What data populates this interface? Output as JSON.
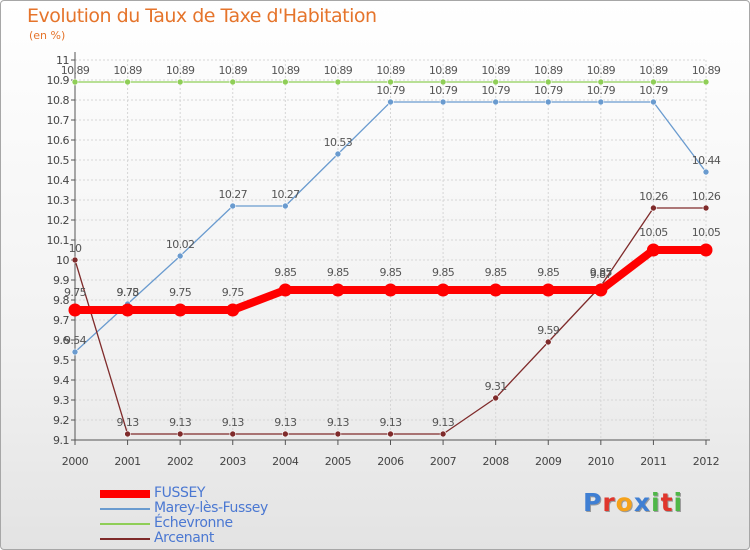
{
  "title": "Evolution du Taux de Taxe d'Habitation",
  "unit_label": "(en %)",
  "logo_text": "Proxiti",
  "logo_colors": [
    "#3f7fd3",
    "#e0362c",
    "#f5a21b",
    "#3f7fd3",
    "#4fb748",
    "#e0362c",
    "#4fb748"
  ],
  "chart_data": {
    "type": "line",
    "x": [
      2000,
      2001,
      2002,
      2003,
      2004,
      2005,
      2006,
      2007,
      2008,
      2009,
      2010,
      2011,
      2012
    ],
    "ylim": [
      9.1,
      11.0
    ],
    "y_ticks": [
      "9.1",
      "9.2",
      "9.3",
      "9.4",
      "9.5",
      "9.6",
      "9.7",
      "9.8",
      "9.9",
      "10",
      "10.1",
      "10.2",
      "10.3",
      "10.4",
      "10.5",
      "10.6",
      "10.7",
      "10.8",
      "10.9",
      "11"
    ],
    "grid": true,
    "legend_position": "bottom-left",
    "series": [
      {
        "name": "FUSSEY",
        "color": "#ff0000",
        "values": [
          9.75,
          9.75,
          9.75,
          9.75,
          9.85,
          9.85,
          9.85,
          9.85,
          9.85,
          9.85,
          9.85,
          10.05,
          10.05
        ],
        "labels": [
          "9.75",
          "9.75",
          "9.75",
          "9.75",
          "9.85",
          "9.85",
          "9.85",
          "9.85",
          "9.85",
          "9.85",
          "9.85",
          "10.05",
          "10.05"
        ]
      },
      {
        "name": "Marey-lès-Fussey",
        "color": "#6a9bcf",
        "values": [
          9.54,
          9.78,
          10.02,
          10.27,
          10.27,
          10.53,
          10.79,
          10.79,
          10.79,
          10.79,
          10.79,
          10.79,
          10.44
        ],
        "labels": [
          "9.54",
          "9.78",
          "10.02",
          "10.27",
          "10.27",
          "10.53",
          "10.79",
          "10.79",
          "10.79",
          "10.79",
          "10.79",
          "10.79",
          "10.44"
        ]
      },
      {
        "name": "Échevronne",
        "color": "#8fce57",
        "values": [
          10.89,
          10.89,
          10.89,
          10.89,
          10.89,
          10.89,
          10.89,
          10.89,
          10.89,
          10.89,
          10.89,
          10.89,
          10.89
        ],
        "labels": [
          "10.89",
          "10.89",
          "10.89",
          "10.89",
          "10.89",
          "10.89",
          "10.89",
          "10.89",
          "10.89",
          "10.89",
          "10.89",
          "10.89",
          "10.89"
        ]
      },
      {
        "name": "Arcenant",
        "color": "#7f2b2b",
        "values": [
          10.0,
          9.13,
          9.13,
          9.13,
          9.13,
          9.13,
          9.13,
          9.13,
          9.31,
          9.59,
          9.87,
          10.26,
          10.26
        ],
        "labels": [
          "10",
          "9.13",
          "9.13",
          "9.13",
          "9.13",
          "9.13",
          "9.13",
          "9.13",
          "9.31",
          "9.59",
          "9.87",
          "10.26",
          "10.26"
        ]
      }
    ]
  }
}
